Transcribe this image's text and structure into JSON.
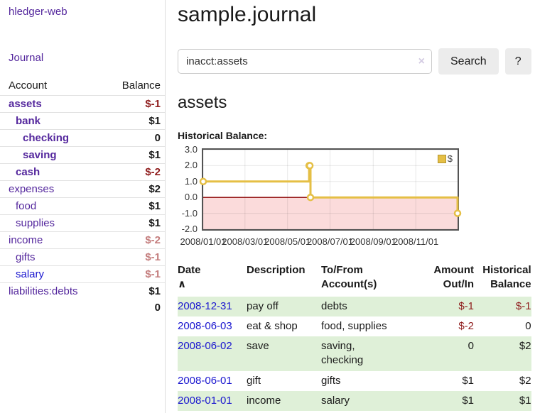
{
  "sidebar": {
    "brand": "hledger-web",
    "journal_link": "Journal",
    "columns": {
      "account": "Account",
      "balance": "Balance"
    },
    "accounts": [
      {
        "name": "assets",
        "indent": 0,
        "bold": true,
        "balance": "$-1",
        "balance_style": "neg"
      },
      {
        "name": "bank",
        "indent": 1,
        "bold": true,
        "balance": "$1",
        "balance_style": "pos"
      },
      {
        "name": "checking",
        "indent": 2,
        "bold": true,
        "balance": "0",
        "balance_style": "pos"
      },
      {
        "name": "saving",
        "indent": 2,
        "bold": true,
        "balance": "$1",
        "balance_style": "pos"
      },
      {
        "name": "cash",
        "indent": 1,
        "bold": true,
        "balance": "$-2",
        "balance_style": "neg"
      },
      {
        "name": "expenses",
        "indent": 0,
        "bold": false,
        "balance": "$2",
        "balance_style": "pos"
      },
      {
        "name": "food",
        "indent": 1,
        "bold": false,
        "balance": "$1",
        "balance_style": "pos"
      },
      {
        "name": "supplies",
        "indent": 1,
        "bold": false,
        "balance": "$1",
        "balance_style": "pos"
      },
      {
        "name": "income",
        "indent": 0,
        "bold": false,
        "balance": "$-2",
        "balance_style": "neg-faded"
      },
      {
        "name": "gifts",
        "indent": 1,
        "bold": false,
        "balance": "$-1",
        "balance_style": "neg-faded"
      },
      {
        "name": "salary",
        "indent": 1,
        "bold": false,
        "balance": "$-1",
        "balance_style": "neg-faded",
        "link_style": "blue"
      },
      {
        "name": "liabilities:debts",
        "indent": 0,
        "bold": false,
        "balance": "$1",
        "balance_style": "pos"
      }
    ],
    "total": "0"
  },
  "header": {
    "title": "sample.journal"
  },
  "search": {
    "value": "inacct:assets",
    "clear_icon": "×",
    "button_label": "Search",
    "help_label": "?"
  },
  "main": {
    "heading": "assets",
    "chart_label": "Historical Balance:"
  },
  "chart_data": {
    "type": "line",
    "title": "Historical Balance",
    "step": true,
    "x_range": [
      "2008-01-01",
      "2008-12-31"
    ],
    "ylim": [
      -2,
      3
    ],
    "y_ticks": [
      "3.0",
      "2.0",
      "1.0",
      "0.0",
      "-1.0",
      "-2.0"
    ],
    "x_ticks": [
      "2008/01/01",
      "2008/03/01",
      "2008/05/01",
      "2008/07/01",
      "2008/09/01",
      "2008/11/01"
    ],
    "legend": "$",
    "legend_position": "top-right",
    "grid": true,
    "series": [
      {
        "name": "$",
        "color": "#e5bf45",
        "points": [
          {
            "date": "2008-01-01",
            "value": 1
          },
          {
            "date": "2008-06-01",
            "value": 2
          },
          {
            "date": "2008-06-02",
            "value": 2
          },
          {
            "date": "2008-06-03",
            "value": 0
          },
          {
            "date": "2008-12-31",
            "value": -1
          }
        ]
      }
    ],
    "negative_region_color": "#fbdbdb",
    "zero_line_color": "#8b0000"
  },
  "register": {
    "columns": {
      "date": {
        "line1": "Date",
        "sort_icon": "∧"
      },
      "description": {
        "line1": "Description"
      },
      "accounts": {
        "line1": "To/From",
        "line2": "Account(s)"
      },
      "amount": {
        "line1": "Amount",
        "line2": "Out/In"
      },
      "balance": {
        "line1": "Historical",
        "line2": "Balance"
      }
    },
    "rows": [
      {
        "date": "2008-12-31",
        "description": "pay off",
        "accounts": "debts",
        "amount": "$-1",
        "amount_neg": true,
        "balance": "$-1",
        "balance_neg": true,
        "shaded": true
      },
      {
        "date": "2008-06-03",
        "description": "eat & shop",
        "accounts": "food, supplies",
        "amount": "$-2",
        "amount_neg": true,
        "balance": "0",
        "balance_neg": false,
        "shaded": false
      },
      {
        "date": "2008-06-02",
        "description": "save",
        "accounts": "saving,\nchecking",
        "amount": "0",
        "amount_neg": false,
        "balance": "$2",
        "balance_neg": false,
        "shaded": true
      },
      {
        "date": "2008-06-01",
        "description": "gift",
        "accounts": "gifts",
        "amount": "$1",
        "amount_neg": false,
        "balance": "$2",
        "balance_neg": false,
        "shaded": false
      },
      {
        "date": "2008-01-01",
        "description": "income",
        "accounts": "salary",
        "amount": "$1",
        "amount_neg": false,
        "balance": "$1",
        "balance_neg": false,
        "shaded": true
      }
    ]
  },
  "colors": {
    "link_purple": "#54279d",
    "link_blue": "#1a16cf",
    "negative": "#8f1d1d",
    "negative_faded": "#c47d7d",
    "row_green": "#dff0d8",
    "chart_gold": "#e5bf45",
    "chart_negative_bg": "#fbdbdb",
    "chart_zero_line": "#8b0000",
    "button_bg": "#ececec"
  }
}
